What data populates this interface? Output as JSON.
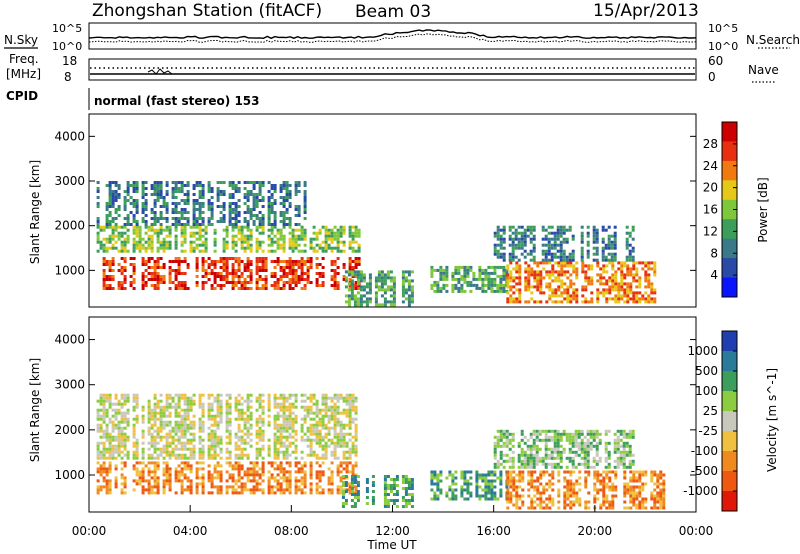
{
  "header": {
    "station": "Zhongshan Station (fitACF)",
    "beam": "Beam 03",
    "date": "15/Apr/2013"
  },
  "noise_panel": {
    "left_label": "N.Sky",
    "right_label": "N.Search",
    "tick_hi": "10^5",
    "tick_lo": "10^0"
  },
  "freq_panel": {
    "left_label_line1": "Freq.",
    "left_label_line2": "[MHz]",
    "left_tick_hi": "18",
    "left_tick_lo": "8",
    "right_label": "Nave",
    "right_tick_hi": "60",
    "right_tick_lo": "0"
  },
  "cpid_panel": {
    "label": "CPID",
    "text": "normal (fast stereo) 153"
  },
  "chart_data": [
    {
      "type": "heatmap",
      "quantity": "Power",
      "xlabel": "",
      "ylabel": "Slant Range [km]",
      "colorbar_label": "Power [dB]",
      "colorbar_ticks": [
        "28",
        "24",
        "20",
        "16",
        "12",
        "8",
        "4"
      ],
      "colorbar_colors": [
        "#0a14ff",
        "#2a4aa8",
        "#3a7a88",
        "#3c9e5a",
        "#7ec63a",
        "#e6c818",
        "#f07a10",
        "#e83010",
        "#cc0000"
      ],
      "y_ticks": [
        "4000",
        "3000",
        "2000",
        "1000"
      ],
      "y_range": [
        180,
        4500
      ],
      "x_range_hours": [
        0,
        24
      ],
      "echo_regions": [
        {
          "t0": 0.3,
          "t1": 10.7,
          "r0": 600,
          "r1": 1300,
          "level": 7
        },
        {
          "t0": 0.3,
          "t1": 10.7,
          "r0": 1400,
          "r1": 2000,
          "level": 4
        },
        {
          "t0": 0.3,
          "t1": 8.5,
          "r0": 2000,
          "r1": 3000,
          "level": 2
        },
        {
          "t0": 10.0,
          "t1": 12.8,
          "r0": 200,
          "r1": 1000,
          "level": 3
        },
        {
          "t0": 13.5,
          "t1": 16.5,
          "r0": 500,
          "r1": 1100,
          "level": 3
        },
        {
          "t0": 16.5,
          "t1": 22.7,
          "r0": 300,
          "r1": 1200,
          "level": 6
        },
        {
          "t0": 16.0,
          "t1": 21.5,
          "r0": 1200,
          "r1": 2000,
          "level": 2
        }
      ]
    },
    {
      "type": "heatmap",
      "quantity": "Velocity",
      "xlabel": "Time UT",
      "ylabel": "Slant Range [km]",
      "colorbar_label": "Velocity [m s^-1]",
      "colorbar_ticks": [
        "1000",
        "500",
        "100",
        "25",
        "-25",
        "-100",
        "-500",
        "-1000"
      ],
      "colorbar_colors": [
        "#1f3fb0",
        "#2a7a9a",
        "#3c9e5a",
        "#8ccc40",
        "#c8c8bc",
        "#f0c040",
        "#f08a20",
        "#ee5810",
        "#e01808"
      ],
      "y_ticks": [
        "4000",
        "3000",
        "2000",
        "1000"
      ],
      "y_range": [
        180,
        4500
      ],
      "x_ticks": [
        "00:00",
        "04:00",
        "08:00",
        "12:00",
        "16:00",
        "20:00",
        "00:00"
      ],
      "x_range_hours": [
        0,
        24
      ],
      "echo_regions": [
        {
          "t0": 0.3,
          "t1": 10.7,
          "r0": 600,
          "r1": 1300,
          "level": 6
        },
        {
          "t0": 0.3,
          "t1": 10.7,
          "r0": 1400,
          "r1": 2800,
          "level": 4
        },
        {
          "t0": 10.0,
          "t1": 12.8,
          "r0": 300,
          "r1": 1000,
          "level": 2
        },
        {
          "t0": 13.5,
          "t1": 16.5,
          "r0": 500,
          "r1": 1100,
          "level": 2
        },
        {
          "t0": 16.5,
          "t1": 22.7,
          "r0": 300,
          "r1": 1100,
          "level": 6
        },
        {
          "t0": 16.0,
          "t1": 21.5,
          "r0": 1200,
          "r1": 2000,
          "level": 3
        }
      ]
    }
  ]
}
